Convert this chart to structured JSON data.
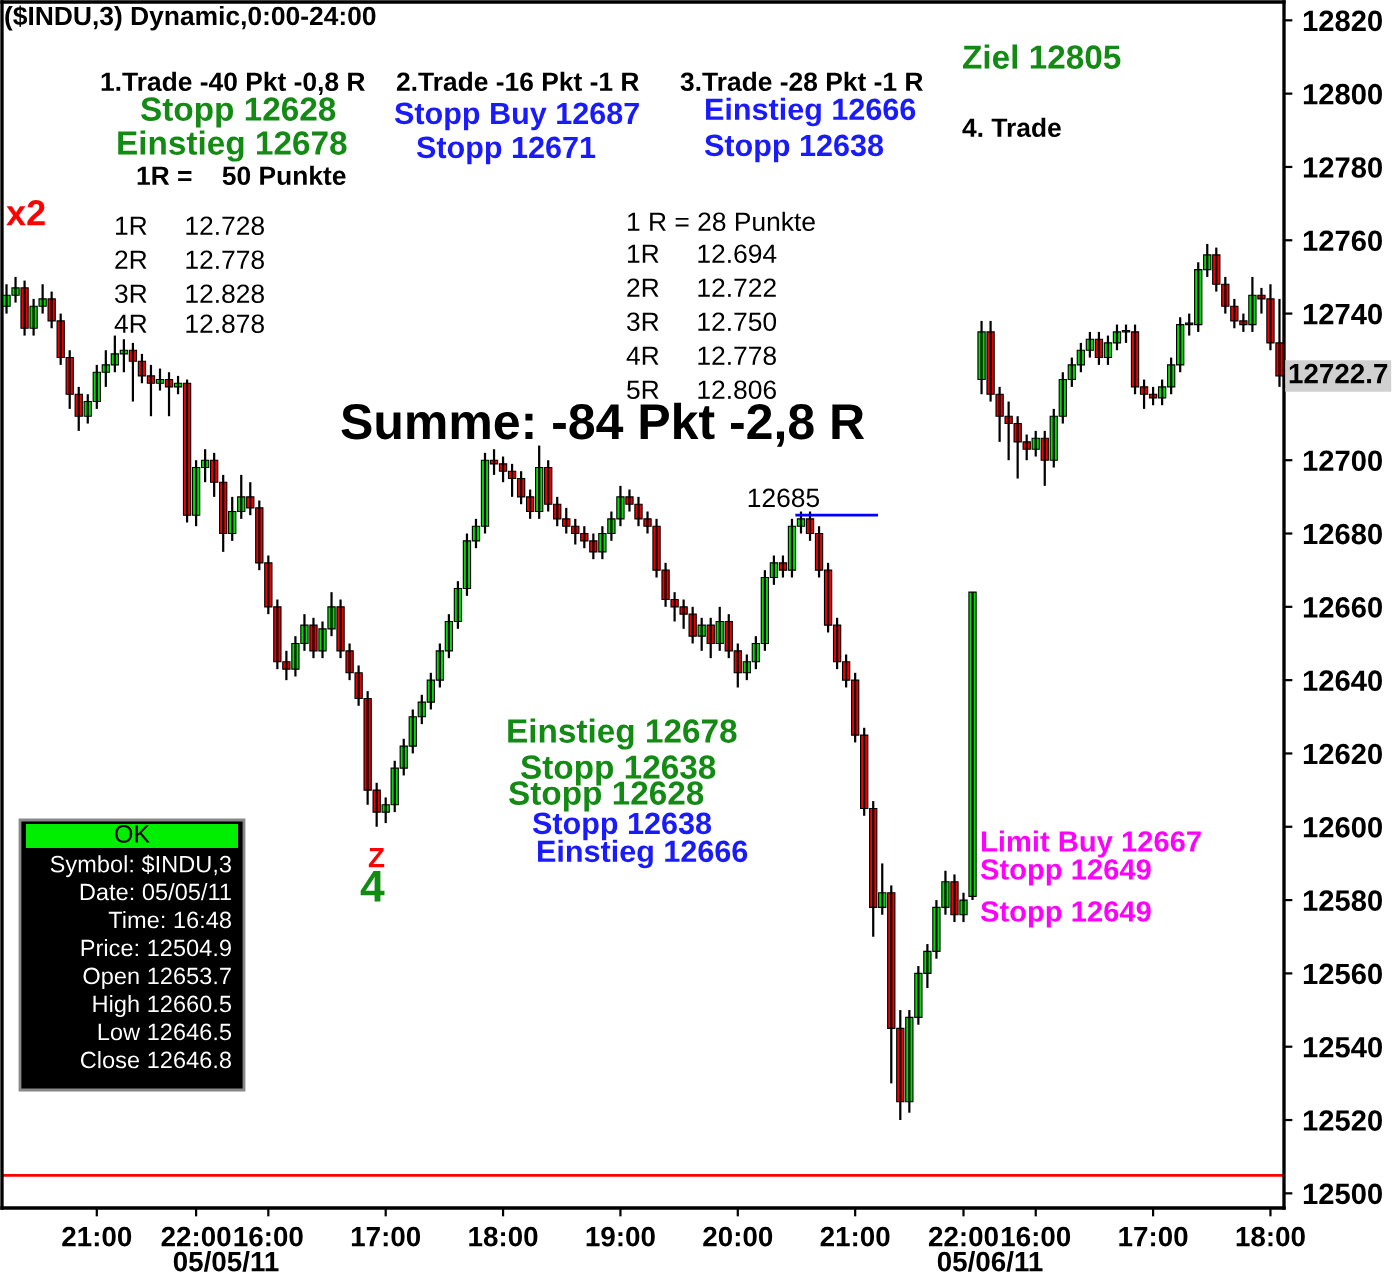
{
  "chart_data": {
    "type": "candlestick",
    "title": "($INDU,3) Dynamic,0:00-24:00",
    "categories": [
      null,
      null,
      null,
      null,
      null,
      null,
      null,
      null,
      null,
      null,
      "21:00",
      null,
      null,
      null,
      null,
      null,
      null,
      null,
      null,
      null,
      null,
      "22:00",
      null,
      null,
      null,
      null,
      null,
      null,
      null,
      "16:00",
      null,
      null,
      null,
      null,
      null,
      null,
      null,
      null,
      null,
      null,
      null,
      null,
      "17:00",
      null,
      null,
      null,
      null,
      null,
      null,
      null,
      null,
      null,
      null,
      null,
      null,
      "18:00",
      null,
      null,
      null,
      null,
      null,
      null,
      null,
      null,
      null,
      null,
      null,
      null,
      "19:00",
      null,
      null,
      null,
      null,
      null,
      null,
      null,
      null,
      null,
      null,
      null,
      null,
      "20:00",
      null,
      null,
      null,
      null,
      null,
      null,
      null,
      null,
      null,
      null,
      null,
      null,
      "21:00",
      null,
      null,
      null,
      null,
      null,
      null,
      null,
      null,
      null,
      null,
      null,
      "22:00",
      null,
      null,
      null,
      null,
      null,
      null,
      null,
      "16:00",
      null,
      null,
      null,
      null,
      null,
      null,
      null,
      null,
      null,
      null,
      null,
      null,
      "17:00",
      null,
      null,
      null,
      null,
      null,
      null,
      null,
      null,
      null,
      null,
      null,
      null,
      "18:00",
      null
    ],
    "ohlc": [
      [
        12742,
        12748,
        12740,
        12745
      ],
      [
        12745,
        12750,
        12743,
        12747
      ],
      [
        12747,
        12749,
        12734,
        12736
      ],
      [
        12736,
        12744,
        12734,
        12742
      ],
      [
        12742,
        12748,
        12740,
        12744
      ],
      [
        12744,
        12746,
        12736,
        12738
      ],
      [
        12738,
        12740,
        12726,
        12728
      ],
      [
        12728,
        12730,
        12714,
        12718
      ],
      [
        12718,
        12720,
        12708,
        12712
      ],
      [
        12712,
        12718,
        12710,
        12716
      ],
      [
        12716,
        12726,
        12714,
        12724
      ],
      [
        12724,
        12730,
        12720,
        12726
      ],
      [
        12726,
        12734,
        12724,
        12729
      ],
      [
        12729,
        12733,
        12724,
        12730
      ],
      [
        12730,
        12732,
        12716,
        12727
      ],
      [
        12727,
        12729,
        12721,
        12723
      ],
      [
        12723,
        12726,
        12712,
        12721
      ],
      [
        12721,
        12725,
        12719,
        12722
      ],
      [
        12722,
        12724,
        12712,
        12720
      ],
      [
        12720,
        12723,
        12718,
        12721
      ],
      [
        12721,
        12722,
        12683,
        12685
      ],
      [
        12685,
        12700,
        12682,
        12698
      ],
      [
        12698,
        12703,
        12694,
        12700
      ],
      [
        12700,
        12702,
        12690,
        12694
      ],
      [
        12694,
        12696,
        12675,
        12680
      ],
      [
        12680,
        12690,
        12678,
        12686
      ],
      [
        12686,
        12696,
        12684,
        12690
      ],
      [
        12690,
        12694,
        12685,
        12687
      ],
      [
        12687,
        12689,
        12670,
        12672
      ],
      [
        12672,
        12674,
        12658,
        12660
      ],
      [
        12660,
        12662,
        12643,
        12645
      ],
      [
        12645,
        12648,
        12640,
        12643
      ],
      [
        12643,
        12652,
        12641,
        12650
      ],
      [
        12650,
        12658,
        12648,
        12655
      ],
      [
        12655,
        12657,
        12646,
        12648
      ],
      [
        12648,
        12656,
        12646,
        12654
      ],
      [
        12654,
        12664,
        12652,
        12660
      ],
      [
        12660,
        12662,
        12646,
        12648
      ],
      [
        12648,
        12650,
        12640,
        12642
      ],
      [
        12642,
        12644,
        12633,
        12635
      ],
      [
        12635,
        12637,
        12606,
        12610
      ],
      [
        12610,
        12612,
        12600,
        12604
      ],
      [
        12604,
        12608,
        12601,
        12606
      ],
      [
        12606,
        12618,
        12604,
        12616
      ],
      [
        12616,
        12624,
        12614,
        12622
      ],
      [
        12622,
        12632,
        12620,
        12630
      ],
      [
        12630,
        12636,
        12628,
        12634
      ],
      [
        12634,
        12642,
        12632,
        12640
      ],
      [
        12640,
        12650,
        12638,
        12648
      ],
      [
        12648,
        12658,
        12646,
        12656
      ],
      [
        12656,
        12667,
        12654,
        12665
      ],
      [
        12665,
        12680,
        12663,
        12678
      ],
      [
        12678,
        12684,
        12676,
        12682
      ],
      [
        12682,
        12702,
        12680,
        12700
      ],
      [
        12700,
        12703,
        12696,
        12699
      ],
      [
        12699,
        12701,
        12694,
        12697
      ],
      [
        12697,
        12699,
        12690,
        12695
      ],
      [
        12695,
        12697,
        12688,
        12690
      ],
      [
        12690,
        12692,
        12684,
        12686
      ],
      [
        12686,
        12704,
        12684,
        12698
      ],
      [
        12698,
        12700,
        12686,
        12688
      ],
      [
        12688,
        12690,
        12682,
        12684
      ],
      [
        12684,
        12687,
        12680,
        12682
      ],
      [
        12682,
        12684,
        12677,
        12680
      ],
      [
        12680,
        12682,
        12676,
        12678
      ],
      [
        12678,
        12680,
        12673,
        12675
      ],
      [
        12675,
        12682,
        12673,
        12680
      ],
      [
        12680,
        12686,
        12678,
        12684
      ],
      [
        12684,
        12693,
        12682,
        12690
      ],
      [
        12690,
        12692,
        12686,
        12688
      ],
      [
        12688,
        12690,
        12682,
        12684
      ],
      [
        12684,
        12686,
        12680,
        12682
      ],
      [
        12682,
        12684,
        12668,
        12670
      ],
      [
        12670,
        12672,
        12660,
        12662
      ],
      [
        12662,
        12664,
        12656,
        12660
      ],
      [
        12660,
        12662,
        12654,
        12658
      ],
      [
        12658,
        12660,
        12650,
        12652
      ],
      [
        12652,
        12657,
        12648,
        12655
      ],
      [
        12655,
        12657,
        12646,
        12650
      ],
      [
        12650,
        12660,
        12648,
        12656
      ],
      [
        12656,
        12658,
        12646,
        12648
      ],
      [
        12648,
        12650,
        12638,
        12642
      ],
      [
        12642,
        12647,
        12640,
        12645
      ],
      [
        12645,
        12652,
        12643,
        12650
      ],
      [
        12650,
        12670,
        12648,
        12668
      ],
      [
        12668,
        12674,
        12666,
        12672
      ],
      [
        12672,
        12674,
        12668,
        12670
      ],
      [
        12670,
        12684,
        12668,
        12682
      ],
      [
        12682,
        12686,
        12680,
        12684
      ],
      [
        12684,
        12686,
        12678,
        12680
      ],
      [
        12680,
        12682,
        12668,
        12670
      ],
      [
        12670,
        12672,
        12653,
        12655
      ],
      [
        12655,
        12657,
        12643,
        12645
      ],
      [
        12645,
        12647,
        12638,
        12640
      ],
      [
        12640,
        12642,
        12623,
        12625
      ],
      [
        12625,
        12627,
        12603,
        12605
      ],
      [
        12605,
        12607,
        12570,
        12578
      ],
      [
        12578,
        12590,
        12576,
        12582
      ],
      [
        12582,
        12584,
        12530,
        12545
      ],
      [
        12545,
        12550,
        12520,
        12525
      ],
      [
        12525,
        12550,
        12522,
        12548
      ],
      [
        12548,
        12562,
        12546,
        12560
      ],
      [
        12560,
        12568,
        12556,
        12566
      ],
      [
        12566,
        12580,
        12564,
        12578
      ],
      [
        12578,
        12588,
        12576,
        12585
      ],
      [
        12585,
        12587,
        12574,
        12576
      ],
      [
        12576,
        12582,
        12574,
        12580
      ],
      [
        12581,
        12664,
        12580,
        12664
      ],
      [
        12722,
        12738,
        12718,
        12735
      ],
      [
        12735,
        12738,
        12716,
        12718
      ],
      [
        12718,
        12720,
        12705,
        12712
      ],
      [
        12712,
        12716,
        12700,
        12710
      ],
      [
        12710,
        12712,
        12695,
        12705
      ],
      [
        12705,
        12707,
        12700,
        12703
      ],
      [
        12703,
        12708,
        12701,
        12706
      ],
      [
        12706,
        12708,
        12693,
        12700
      ],
      [
        12700,
        12714,
        12698,
        12712
      ],
      [
        12712,
        12724,
        12710,
        12722
      ],
      [
        12722,
        12728,
        12720,
        12726
      ],
      [
        12726,
        12732,
        12724,
        12730
      ],
      [
        12730,
        12735,
        12728,
        12733
      ],
      [
        12733,
        12735,
        12726,
        12728
      ],
      [
        12728,
        12734,
        12726,
        12732
      ],
      [
        12732,
        12737,
        12730,
        12735
      ],
      [
        12735,
        12737,
        12732,
        12735
      ],
      [
        12735,
        12737,
        12718,
        12720
      ],
      [
        12720,
        12722,
        12714,
        12718
      ],
      [
        12718,
        12720,
        12715,
        12717
      ],
      [
        12717,
        12722,
        12715,
        12720
      ],
      [
        12720,
        12728,
        12718,
        12726
      ],
      [
        12726,
        12739,
        12724,
        12737
      ],
      [
        12737,
        12740,
        12734,
        12737
      ],
      [
        12737,
        12754,
        12735,
        12752
      ],
      [
        12752,
        12759,
        12750,
        12756
      ],
      [
        12756,
        12758,
        12746,
        12748
      ],
      [
        12748,
        12750,
        12740,
        12742
      ],
      [
        12742,
        12744,
        12736,
        12738
      ],
      [
        12738,
        12740,
        12735,
        12737
      ],
      [
        12737,
        12750,
        12735,
        12745
      ],
      [
        12745,
        12747,
        12740,
        12744
      ],
      [
        12744,
        12748,
        12730,
        12732
      ],
      [
        12732,
        12744,
        12720,
        12723
      ]
    ],
    "ylim": [
      12496,
      12825
    ],
    "yticks": [
      12500,
      12520,
      12540,
      12560,
      12580,
      12600,
      12620,
      12640,
      12660,
      12680,
      12700,
      {
        "value": 12720,
        "label": null
      },
      12740,
      12760,
      12780,
      12800,
      12820
    ],
    "grid": false,
    "ref_lines": [
      {
        "axis": "y",
        "value": 12504.9,
        "color": "#ff0000"
      },
      {
        "axis": "y",
        "value": 12685,
        "label": "12685",
        "color": "#0000ff"
      }
    ],
    "annotations": [
      "1.Trade -40 Pkt -0,8 R",
      "Stopp 12628",
      "Einstieg 12678",
      "1R =    50 Punkte",
      "1R     12.728",
      "2R     12.778",
      "3R     12.828",
      "4R     12.878",
      "2.Trade -16 Pkt -1 R",
      "Stopp Buy 12687",
      "Stopp 12671",
      "3.Trade -28 Pkt -1 R",
      "Einstieg 12666",
      "Stopp 12638",
      "Ziel 12805",
      "4. Trade",
      "1 R = 28 Punkte",
      "1R     12.694",
      "2R     12.722",
      "3R     12.750",
      "4R     12.778",
      "5R     12.806",
      "Summe: -84 Pkt -2,8 R",
      "Einstieg 12678",
      "Stopp 12638",
      "Stopp 12628",
      "Stopp 12638",
      "Einstieg 12666",
      "Limit Buy 12667",
      "Stopp 12649",
      "Stopp 12649",
      "x2",
      "Z",
      "4",
      "12722.7",
      "05/05/11",
      "05/06/11",
      "OK",
      "Symbol: $INDU,3",
      "Date: 05/05/11",
      "Time: 16:48",
      "Price: 12504.9",
      "Open 12653.7",
      "High 12660.5",
      "Low 12646.5",
      "Close 12646.8"
    ]
  }
}
